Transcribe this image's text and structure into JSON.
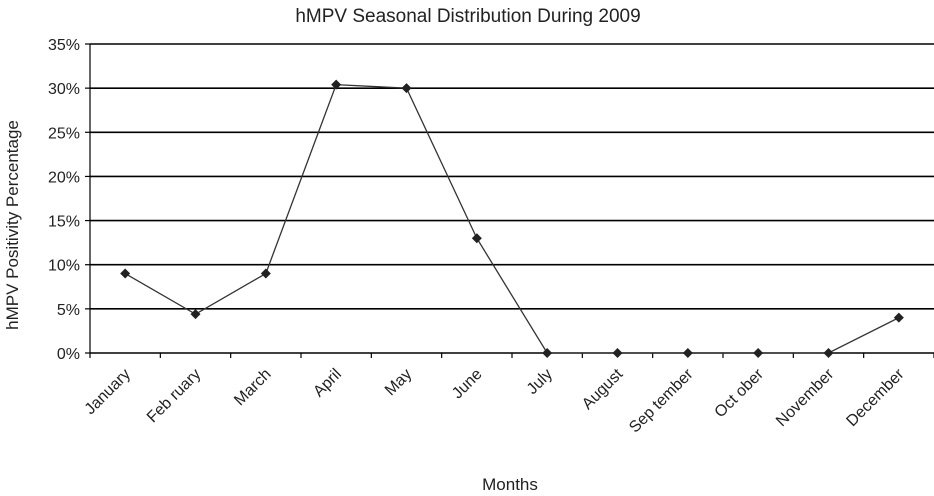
{
  "chart_data": {
    "type": "line",
    "title": "hMPV Seasonal Distribution During 2009",
    "xlabel": "Months",
    "ylabel": "hMPV Positivity Percentage",
    "categories": [
      "January",
      "Feb ruary",
      "March",
      "April",
      "May",
      "June",
      "July",
      "August",
      "Sep tember",
      "Oct ober",
      "November",
      "December"
    ],
    "series": [
      {
        "values": [
          9.0,
          4.4,
          9.0,
          30.4,
          30.0,
          13.0,
          0,
          0,
          0,
          0,
          0,
          4.0
        ]
      }
    ],
    "ylim": [
      0,
      35
    ],
    "yticks": [
      "0%",
      "5%",
      "10%",
      "15%",
      "20%",
      "25%",
      "30%",
      "35%"
    ],
    "grid": true,
    "legend": "none",
    "colors": {
      "line": "#333333",
      "marker": "#222222",
      "grid": "#000000"
    }
  }
}
